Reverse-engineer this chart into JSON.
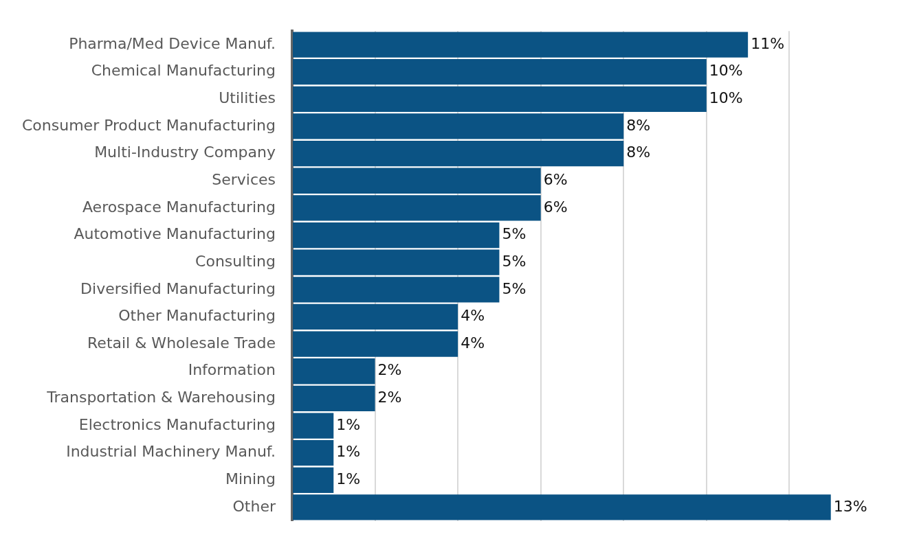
{
  "chart_data": {
    "type": "bar",
    "orientation": "horizontal",
    "categories": [
      "Pharma/Med Device Manuf.",
      "Chemical Manufacturing",
      "Utilities",
      "Consumer Product Manufacturing",
      "Multi-Industry Company",
      "Services",
      "Aerospace Manufacturing",
      "Automotive Manufacturing",
      "Consulting",
      "Diversified Manufacturing",
      "Other Manufacturing",
      "Retail & Wholesale Trade",
      "Information",
      "Transportation & Warehousing",
      "Electronics Manufacturing",
      "Industrial Machinery Manuf.",
      "Mining",
      "Other"
    ],
    "values": [
      11,
      10,
      10,
      8,
      8,
      6,
      6,
      5,
      5,
      5,
      4,
      4,
      2,
      2,
      1,
      1,
      1,
      13
    ],
    "value_labels": [
      "11%",
      "10%",
      "10%",
      "8%",
      "8%",
      "6%",
      "6%",
      "5%",
      "5%",
      "5%",
      "4%",
      "4%",
      "2%",
      "2%",
      "1%",
      "1%",
      "1%",
      "13%"
    ],
    "color": "#0b5384",
    "xticks": [
      {
        "value": 0,
        "label": null
      },
      {
        "value": 2,
        "label": null
      },
      {
        "value": 4,
        "label": null
      },
      {
        "value": 6,
        "label": null
      },
      {
        "value": 8,
        "label": null
      },
      {
        "value": 10,
        "label": null
      },
      {
        "value": 12,
        "label": null
      }
    ],
    "grid": "x",
    "tick_labels": "y",
    "legend": false
  }
}
